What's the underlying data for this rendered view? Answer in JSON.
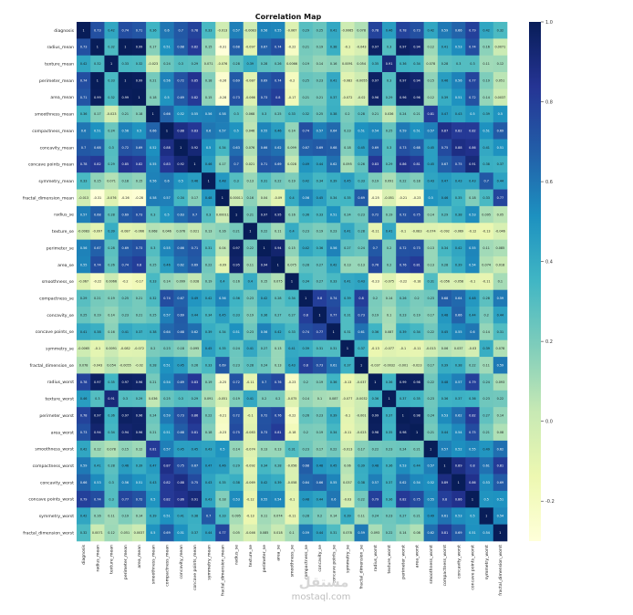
{
  "chart_data": {
    "type": "heatmap",
    "title": "Correlation Map",
    "colormap": "YlGnBu",
    "color_range": [
      -0.3,
      1.0
    ],
    "colorbar_ticks": [
      1.0,
      0.8,
      0.6,
      0.4,
      0.2,
      0.0,
      -0.2
    ],
    "annotated": true,
    "labels": [
      "diagnosis",
      "radius_mean",
      "texture_mean",
      "perimeter_mean",
      "area_mean",
      "smoothness_mean",
      "compactness_mean",
      "concavity_mean",
      "concave points_mean",
      "symmetry_mean",
      "fractal_dimension_mean",
      "radius_se",
      "texture_se",
      "perimeter_se",
      "area_se",
      "smoothness_se",
      "compactness_se",
      "concavity_se",
      "concave points_se",
      "symmetry_se",
      "fractal_dimension_se",
      "radius_worst",
      "texture_worst",
      "perimeter_worst",
      "area_worst",
      "smoothness_worst",
      "compactness_worst",
      "concavity_worst",
      "concave points_worst",
      "symmetry_worst",
      "fractal_dimension_worst"
    ],
    "matrix": [
      [
        1,
        0.73,
        0.42,
        0.74,
        0.71,
        0.36,
        0.6,
        0.7,
        0.78,
        0.33,
        -0.013,
        0.57,
        -0.0083,
        0.56,
        0.55,
        -0.067,
        0.29,
        0.25,
        0.41,
        -0.0065,
        0.078,
        0.78,
        0.46,
        0.78,
        0.73,
        0.42,
        0.59,
        0.66,
        0.79,
        0.42,
        0.32
      ],
      [
        0.73,
        1,
        0.32,
        1,
        0.99,
        0.17,
        0.51,
        0.68,
        0.82,
        0.15,
        -0.31,
        0.68,
        -0.097,
        0.67,
        0.74,
        -0.22,
        0.21,
        0.19,
        0.38,
        -0.1,
        -0.043,
        0.97,
        0.3,
        0.97,
        0.94,
        0.12,
        0.41,
        0.53,
        0.74,
        0.16,
        0.0071
      ],
      [
        0.42,
        0.32,
        1,
        0.33,
        0.32,
        -0.023,
        0.24,
        0.3,
        0.29,
        0.071,
        -0.076,
        0.28,
        0.39,
        0.28,
        0.26,
        0.0066,
        0.19,
        0.14,
        0.16,
        0.0091,
        0.054,
        0.35,
        0.91,
        0.36,
        0.34,
        0.078,
        0.28,
        0.3,
        0.3,
        0.11,
        0.12
      ],
      [
        0.74,
        1,
        0.33,
        1,
        0.99,
        0.21,
        0.56,
        0.72,
        0.85,
        0.18,
        -0.26,
        0.69,
        -0.087,
        0.69,
        0.74,
        -0.2,
        0.25,
        0.23,
        0.41,
        -0.082,
        -0.0055,
        0.97,
        0.3,
        0.97,
        0.94,
        0.15,
        0.46,
        0.56,
        0.77,
        0.19,
        0.051
      ],
      [
        0.71,
        0.99,
        0.32,
        0.99,
        1,
        0.18,
        0.5,
        0.69,
        0.82,
        0.15,
        -0.28,
        0.73,
        -0.066,
        0.73,
        0.8,
        -0.17,
        0.21,
        0.21,
        0.37,
        -0.072,
        -0.02,
        0.96,
        0.29,
        0.96,
        0.96,
        0.12,
        0.39,
        0.51,
        0.72,
        0.14,
        0.0037
      ],
      [
        0.36,
        0.17,
        -0.023,
        0.21,
        0.18,
        1,
        0.66,
        0.52,
        0.55,
        0.56,
        0.58,
        0.3,
        0.068,
        0.3,
        0.25,
        0.33,
        0.32,
        0.25,
        0.38,
        0.2,
        0.28,
        0.21,
        0.036,
        0.24,
        0.21,
        0.81,
        0.47,
        0.43,
        0.5,
        0.39,
        0.5
      ],
      [
        0.6,
        0.51,
        0.24,
        0.56,
        0.5,
        0.66,
        1,
        0.88,
        0.83,
        0.6,
        0.57,
        0.5,
        0.046,
        0.55,
        0.46,
        0.14,
        0.74,
        0.57,
        0.64,
        0.23,
        0.51,
        0.54,
        0.25,
        0.59,
        0.51,
        0.57,
        0.87,
        0.82,
        0.82,
        0.51,
        0.69
      ],
      [
        0.7,
        0.68,
        0.3,
        0.72,
        0.69,
        0.52,
        0.88,
        1,
        0.92,
        0.5,
        0.34,
        0.63,
        0.076,
        0.66,
        0.62,
        0.099,
        0.67,
        0.69,
        0.68,
        0.18,
        0.45,
        0.69,
        0.3,
        0.73,
        0.68,
        0.45,
        0.75,
        0.88,
        0.86,
        0.41,
        0.51
      ],
      [
        0.78,
        0.82,
        0.29,
        0.85,
        0.82,
        0.55,
        0.83,
        0.92,
        1,
        0.46,
        0.17,
        0.7,
        0.021,
        0.71,
        0.69,
        0.028,
        0.49,
        0.44,
        0.62,
        0.095,
        0.26,
        0.83,
        0.29,
        0.86,
        0.81,
        0.45,
        0.67,
        0.75,
        0.91,
        0.38,
        0.37
      ],
      [
        0.33,
        0.15,
        0.071,
        0.18,
        0.15,
        0.56,
        0.6,
        0.5,
        0.46,
        1,
        0.48,
        0.3,
        0.13,
        0.31,
        0.22,
        0.19,
        0.42,
        0.34,
        0.39,
        0.45,
        0.33,
        0.19,
        0.091,
        0.22,
        0.18,
        0.43,
        0.47,
        0.43,
        0.43,
        0.7,
        0.44
      ],
      [
        -0.013,
        -0.31,
        -0.076,
        -0.26,
        -0.28,
        0.58,
        0.57,
        0.34,
        0.17,
        0.48,
        1,
        0.00011,
        0.16,
        0.04,
        -0.09,
        0.4,
        0.56,
        0.45,
        0.34,
        0.35,
        0.69,
        -0.25,
        -0.051,
        -0.21,
        -0.23,
        0.5,
        0.46,
        0.35,
        0.18,
        0.33,
        0.77
      ],
      [
        0.57,
        0.68,
        0.28,
        0.69,
        0.73,
        0.3,
        0.5,
        0.63,
        0.7,
        0.3,
        0.00011,
        1,
        0.21,
        0.97,
        0.95,
        0.16,
        0.36,
        0.33,
        0.51,
        0.24,
        0.23,
        0.72,
        0.19,
        0.72,
        0.75,
        0.14,
        0.29,
        0.38,
        0.53,
        0.095,
        0.05
      ],
      [
        -0.0083,
        -0.097,
        0.39,
        -0.087,
        -0.066,
        0.068,
        0.046,
        0.076,
        0.021,
        0.13,
        0.16,
        0.21,
        1,
        0.22,
        0.11,
        0.4,
        0.23,
        0.19,
        0.23,
        0.41,
        0.28,
        -0.11,
        0.41,
        -0.1,
        -0.083,
        -0.074,
        -0.092,
        -0.069,
        -0.12,
        -0.13,
        -0.046
      ],
      [
        0.56,
        0.67,
        0.28,
        0.69,
        0.73,
        0.3,
        0.55,
        0.66,
        0.71,
        0.31,
        0.04,
        0.97,
        0.22,
        1,
        0.94,
        0.15,
        0.42,
        0.36,
        0.56,
        0.27,
        0.24,
        0.7,
        0.2,
        0.72,
        0.73,
        0.13,
        0.34,
        0.42,
        0.55,
        0.11,
        0.085
      ],
      [
        0.55,
        0.74,
        0.26,
        0.74,
        0.8,
        0.25,
        0.46,
        0.62,
        0.69,
        0.22,
        -0.09,
        0.95,
        0.11,
        0.94,
        1,
        0.075,
        0.28,
        0.27,
        0.42,
        0.13,
        0.13,
        0.76,
        0.2,
        0.76,
        0.81,
        0.13,
        0.28,
        0.39,
        0.54,
        0.074,
        0.018
      ],
      [
        -0.067,
        -0.22,
        0.0066,
        -0.2,
        -0.17,
        0.33,
        0.14,
        0.099,
        0.028,
        0.19,
        0.4,
        0.16,
        0.4,
        0.15,
        0.075,
        1,
        0.34,
        0.27,
        0.33,
        0.41,
        0.43,
        -0.23,
        -0.075,
        -0.22,
        -0.18,
        0.31,
        -0.056,
        -0.058,
        -0.1,
        -0.11,
        0.1
      ],
      [
        0.29,
        0.21,
        0.19,
        0.25,
        0.21,
        0.32,
        0.74,
        0.67,
        0.49,
        0.42,
        0.56,
        0.36,
        0.23,
        0.42,
        0.28,
        0.34,
        1,
        0.8,
        0.74,
        0.39,
        0.8,
        0.2,
        0.14,
        0.26,
        0.2,
        0.23,
        0.68,
        0.64,
        0.48,
        0.28,
        0.59
      ],
      [
        0.25,
        0.19,
        0.14,
        0.23,
        0.21,
        0.25,
        0.57,
        0.69,
        0.44,
        0.34,
        0.45,
        0.33,
        0.19,
        0.36,
        0.27,
        0.27,
        0.8,
        1,
        0.77,
        0.31,
        0.73,
        0.19,
        0.1,
        0.23,
        0.19,
        0.17,
        0.48,
        0.66,
        0.44,
        0.2,
        0.44
      ],
      [
        0.41,
        0.38,
        0.16,
        0.41,
        0.37,
        0.38,
        0.64,
        0.68,
        0.62,
        0.39,
        0.34,
        0.51,
        0.23,
        0.56,
        0.42,
        0.33,
        0.74,
        0.77,
        1,
        0.31,
        0.61,
        0.36,
        0.087,
        0.39,
        0.34,
        0.22,
        0.45,
        0.55,
        0.6,
        0.14,
        0.31
      ],
      [
        -0.0065,
        -0.1,
        0.0091,
        -0.082,
        -0.072,
        0.2,
        0.23,
        0.18,
        0.095,
        0.45,
        0.35,
        0.24,
        0.41,
        0.27,
        0.13,
        0.41,
        0.39,
        0.31,
        0.31,
        1,
        0.37,
        -0.13,
        -0.077,
        -0.1,
        -0.11,
        -0.013,
        0.06,
        0.037,
        -0.03,
        0.39,
        0.078
      ],
      [
        0.078,
        -0.043,
        0.054,
        -0.0055,
        -0.02,
        0.28,
        0.51,
        0.45,
        0.26,
        0.33,
        0.69,
        0.23,
        0.28,
        0.24,
        0.13,
        0.43,
        0.8,
        0.73,
        0.61,
        0.37,
        1,
        -0.037,
        -0.0032,
        -0.001,
        -0.023,
        0.17,
        0.39,
        0.38,
        0.22,
        0.11,
        0.59
      ],
      [
        0.78,
        0.97,
        0.35,
        0.97,
        0.96,
        0.21,
        0.54,
        0.69,
        0.83,
        0.19,
        -0.25,
        0.72,
        -0.11,
        0.7,
        0.76,
        -0.23,
        0.2,
        0.19,
        0.36,
        -0.13,
        -0.037,
        1,
        0.36,
        0.99,
        0.98,
        0.22,
        0.48,
        0.57,
        0.79,
        0.24,
        0.093
      ],
      [
        0.46,
        0.3,
        0.91,
        0.3,
        0.29,
        0.036,
        0.25,
        0.3,
        0.29,
        0.091,
        -0.051,
        0.19,
        0.41,
        0.2,
        0.2,
        -0.075,
        0.14,
        0.1,
        0.087,
        -0.077,
        -0.0032,
        0.36,
        1,
        0.37,
        0.35,
        0.23,
        0.36,
        0.37,
        0.36,
        0.23,
        0.22
      ],
      [
        0.78,
        0.97,
        0.36,
        0.97,
        0.96,
        0.24,
        0.59,
        0.73,
        0.86,
        0.22,
        -0.21,
        0.72,
        -0.1,
        0.72,
        0.76,
        -0.22,
        0.26,
        0.23,
        0.39,
        -0.1,
        -0.001,
        0.99,
        0.37,
        1,
        0.98,
        0.24,
        0.53,
        0.62,
        0.82,
        0.27,
        0.14
      ],
      [
        0.73,
        0.94,
        0.34,
        0.94,
        0.96,
        0.21,
        0.51,
        0.68,
        0.81,
        0.18,
        -0.23,
        0.75,
        -0.083,
        0.73,
        0.81,
        -0.18,
        0.2,
        0.19,
        0.34,
        -0.11,
        -0.023,
        0.98,
        0.35,
        0.98,
        1,
        0.21,
        0.44,
        0.54,
        0.75,
        0.21,
        0.08
      ],
      [
        0.42,
        0.12,
        0.078,
        0.15,
        0.12,
        0.81,
        0.57,
        0.45,
        0.45,
        0.43,
        0.5,
        0.14,
        -0.074,
        0.13,
        0.13,
        0.31,
        0.23,
        0.17,
        0.22,
        -0.013,
        0.17,
        0.22,
        0.23,
        0.24,
        0.21,
        1,
        0.57,
        0.52,
        0.55,
        0.49,
        0.62
      ],
      [
        0.59,
        0.41,
        0.28,
        0.46,
        0.39,
        0.47,
        0.87,
        0.75,
        0.67,
        0.47,
        0.46,
        0.29,
        -0.092,
        0.34,
        0.28,
        -0.056,
        0.68,
        0.48,
        0.45,
        0.06,
        0.39,
        0.48,
        0.36,
        0.53,
        0.44,
        0.57,
        1,
        0.89,
        0.8,
        0.61,
        0.81
      ],
      [
        0.66,
        0.53,
        0.3,
        0.56,
        0.51,
        0.43,
        0.82,
        0.88,
        0.75,
        0.43,
        0.35,
        0.38,
        -0.069,
        0.42,
        0.39,
        -0.058,
        0.64,
        0.66,
        0.55,
        0.037,
        0.38,
        0.57,
        0.37,
        0.62,
        0.54,
        0.52,
        0.89,
        1,
        0.86,
        0.53,
        0.69
      ],
      [
        0.79,
        0.74,
        0.3,
        0.77,
        0.72,
        0.5,
        0.82,
        0.86,
        0.91,
        0.43,
        0.18,
        0.53,
        -0.12,
        0.55,
        0.54,
        -0.1,
        0.48,
        0.44,
        0.6,
        -0.03,
        0.22,
        0.79,
        0.36,
        0.82,
        0.75,
        0.55,
        0.8,
        0.86,
        1,
        0.5,
        0.51
      ],
      [
        0.42,
        0.16,
        0.11,
        0.19,
        0.14,
        0.39,
        0.51,
        0.41,
        0.38,
        0.7,
        0.33,
        0.095,
        -0.13,
        0.11,
        0.074,
        -0.11,
        0.28,
        0.2,
        0.14,
        0.39,
        0.11,
        0.24,
        0.23,
        0.27,
        0.21,
        0.49,
        0.61,
        0.53,
        0.5,
        1,
        0.54
      ],
      [
        0.32,
        0.0071,
        0.12,
        0.051,
        0.0037,
        0.5,
        0.69,
        0.51,
        0.37,
        0.44,
        0.77,
        0.05,
        -0.046,
        0.085,
        0.018,
        0.1,
        0.59,
        0.44,
        0.31,
        0.078,
        0.59,
        0.093,
        0.22,
        0.14,
        0.08,
        0.62,
        0.81,
        0.69,
        0.51,
        0.54,
        1
      ]
    ]
  },
  "watermark": {
    "logo": "مستقل",
    "domain": "mostaql.com"
  }
}
